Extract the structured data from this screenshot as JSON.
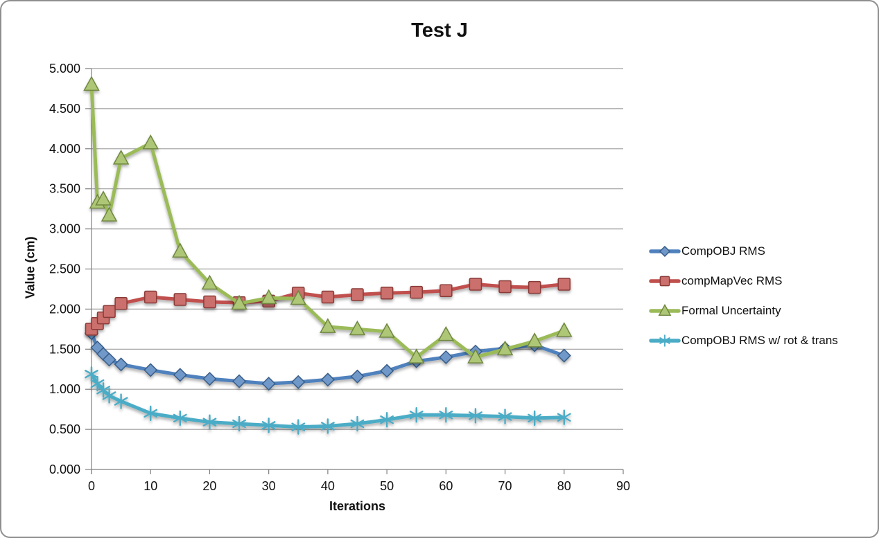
{
  "window": {
    "background": "#ffffff",
    "border_color": "#8e8e8e"
  },
  "chart_data": {
    "type": "line",
    "title": "Test J",
    "xlabel": "Iterations",
    "ylabel": "Value (cm)",
    "xlim": [
      0,
      90
    ],
    "ylim": [
      0,
      5
    ],
    "x_ticks": [
      0,
      10,
      20,
      30,
      40,
      50,
      60,
      70,
      80,
      90
    ],
    "y_ticks": [
      "0.000",
      "0.500",
      "1.000",
      "1.500",
      "2.000",
      "2.500",
      "3.000",
      "3.500",
      "4.000",
      "4.500",
      "5.000"
    ],
    "grid": "horizontal",
    "legend_position": "right",
    "x": [
      0,
      1,
      2,
      3,
      5,
      10,
      15,
      20,
      25,
      30,
      35,
      40,
      45,
      50,
      55,
      60,
      65,
      70,
      75,
      80
    ],
    "series": [
      {
        "name": "CompOBJ RMS",
        "marker": "diamond",
        "color": "#4F81BD",
        "values": [
          1.7,
          1.52,
          1.44,
          1.37,
          1.31,
          1.24,
          1.18,
          1.13,
          1.1,
          1.07,
          1.09,
          1.12,
          1.16,
          1.23,
          1.35,
          1.4,
          1.47,
          1.51,
          1.55,
          1.42
        ]
      },
      {
        "name": "compMapVec RMS",
        "marker": "square",
        "color": "#C0504D",
        "values": [
          1.75,
          1.82,
          1.89,
          1.97,
          2.07,
          2.15,
          2.12,
          2.09,
          2.08,
          2.1,
          2.2,
          2.15,
          2.18,
          2.2,
          2.21,
          2.23,
          2.31,
          2.28,
          2.27,
          2.31
        ]
      },
      {
        "name": "Formal Uncertainty",
        "marker": "triangle",
        "color": "#9BBB59",
        "values": [
          4.8,
          3.33,
          3.37,
          3.17,
          3.88,
          4.07,
          2.72,
          2.32,
          2.07,
          2.14,
          2.13,
          1.78,
          1.75,
          1.72,
          1.4,
          1.68,
          1.4,
          1.5,
          1.6,
          1.73
        ]
      },
      {
        "name": "CompOBJ RMS w/ rot & trans",
        "marker": "asterisk",
        "color": "#4BACC6",
        "values": [
          1.19,
          1.07,
          0.99,
          0.92,
          0.85,
          0.7,
          0.64,
          0.59,
          0.57,
          0.55,
          0.53,
          0.54,
          0.57,
          0.62,
          0.68,
          0.68,
          0.67,
          0.66,
          0.64,
          0.65
        ]
      }
    ],
    "axis_color": "#7f7f7f",
    "gridline_color": "#9d9d9d",
    "text_color": "#111111"
  }
}
